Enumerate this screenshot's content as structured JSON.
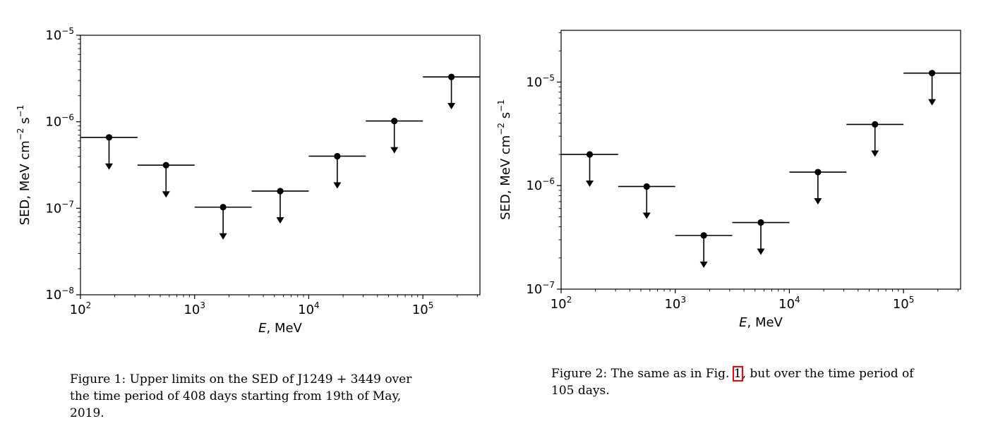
{
  "chart_data": [
    {
      "type": "scatter",
      "subtype": "upper-limits",
      "title": "",
      "xlabel_italic": "E",
      "xlabel_rest": ", MeV",
      "ylabel": "SED, MeV cm",
      "ylabel_sup1": "−2",
      "ylabel_mid": " s",
      "ylabel_sup2": "−1",
      "xscale": "log",
      "yscale": "log",
      "xlim": [
        100,
        316228
      ],
      "ylim": [
        1e-08,
        1e-05
      ],
      "xtick_exponents": [
        2,
        3,
        4,
        5
      ],
      "ytick_exponents": [
        -8,
        -7,
        -6,
        -5
      ],
      "legend": "none",
      "grid": false,
      "bins": [
        {
          "x": 178,
          "x_low": 100,
          "x_high": 316,
          "y": 6.6e-07
        },
        {
          "x": 562,
          "x_low": 316,
          "x_high": 1000,
          "y": 3.15e-07
        },
        {
          "x": 1778,
          "x_low": 1000,
          "x_high": 3162,
          "y": 1.03e-07
        },
        {
          "x": 5623,
          "x_low": 3162,
          "x_high": 10000,
          "y": 1.58e-07
        },
        {
          "x": 17783,
          "x_low": 10000,
          "x_high": 31623,
          "y": 4e-07
        },
        {
          "x": 56234,
          "x_low": 31623,
          "x_high": 100000,
          "y": 1.02e-06
        },
        {
          "x": 177828,
          "x_low": 100000,
          "x_high": 316228,
          "y": 3.3e-06
        }
      ]
    },
    {
      "type": "scatter",
      "subtype": "upper-limits",
      "title": "",
      "xlabel_italic": "E",
      "xlabel_rest": ", MeV",
      "ylabel": "SED, MeV cm",
      "ylabel_sup1": "−2",
      "ylabel_mid": " s",
      "ylabel_sup2": "−1",
      "xscale": "log",
      "yscale": "log",
      "xlim": [
        100,
        316228
      ],
      "ylim": [
        1e-07,
        3.16e-05
      ],
      "xtick_exponents": [
        2,
        3,
        4,
        5
      ],
      "ytick_exponents": [
        -7,
        -6,
        -5
      ],
      "legend": "none",
      "grid": false,
      "bins": [
        {
          "x": 178,
          "x_low": 100,
          "x_high": 316,
          "y": 2e-06
        },
        {
          "x": 562,
          "x_low": 316,
          "x_high": 1000,
          "y": 9.8e-07
        },
        {
          "x": 1778,
          "x_low": 1000,
          "x_high": 3162,
          "y": 3.3e-07
        },
        {
          "x": 5623,
          "x_low": 3162,
          "x_high": 10000,
          "y": 4.4e-07
        },
        {
          "x": 17783,
          "x_low": 10000,
          "x_high": 31623,
          "y": 1.35e-06
        },
        {
          "x": 56234,
          "x_low": 31623,
          "x_high": 100000,
          "y": 3.9e-06
        },
        {
          "x": 177828,
          "x_low": 100000,
          "x_high": 316228,
          "y": 1.22e-05
        }
      ]
    }
  ],
  "captions": {
    "fig1": "Figure 1: Upper limits on the SED of J1249 + 3449 over the time period of 408 days starting from 19th of May, 2019.",
    "fig2_before": "Figure 2: The same as in Fig. ",
    "fig2_ref": "1",
    "fig2_after": ", but over the time period of 105 days."
  },
  "colors": {
    "ink": "#000000",
    "figref_box": "#ff0000"
  }
}
